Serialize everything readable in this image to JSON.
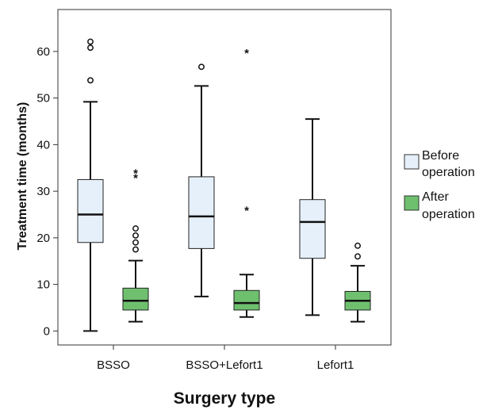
{
  "chart_data": {
    "type": "boxplot",
    "xlabel": "Surgery type",
    "ylabel": "Treatment time (months)",
    "ylim": [
      -3,
      69
    ],
    "yticks": [
      0,
      10,
      20,
      30,
      40,
      50,
      60
    ],
    "grid": false,
    "legend_position": "right",
    "categories": [
      "BSSO",
      "BSSO+Lefort1",
      "Lefort1"
    ],
    "series": [
      {
        "name": "Before operation",
        "color": "#e6f0fa",
        "boxes": [
          {
            "category": "BSSO",
            "min": 0,
            "q1": 19,
            "median": 25,
            "q3": 32.5,
            "max": 49.2,
            "outliers": [
              53.8,
              60.8,
              62.1
            ],
            "extremes": []
          },
          {
            "category": "BSSO+Lefort1",
            "min": 7.4,
            "q1": 17.7,
            "median": 24.6,
            "q3": 33.1,
            "max": 52.6,
            "outliers": [
              56.7
            ],
            "extremes": []
          },
          {
            "category": "Lefort1",
            "min": 3.4,
            "q1": 15.6,
            "median": 23.4,
            "q3": 28.2,
            "max": 45.5,
            "outliers": [],
            "extremes": []
          }
        ]
      },
      {
        "name": "After operation",
        "color": "#6ec06e",
        "boxes": [
          {
            "category": "BSSO",
            "min": 2,
            "q1": 4.5,
            "median": 6.5,
            "q3": 9.2,
            "max": 15.1,
            "outliers": [
              17.5,
              19,
              20.5,
              22
            ],
            "extremes": [
              33,
              34
            ]
          },
          {
            "category": "BSSO+Lefort1",
            "min": 3,
            "q1": 4.5,
            "median": 6,
            "q3": 8.7,
            "max": 12.1,
            "outliers": [],
            "extremes": [
              26,
              59.8
            ]
          },
          {
            "category": "Lefort1",
            "min": 2,
            "q1": 4.5,
            "median": 6.5,
            "q3": 8.5,
            "max": 14,
            "outliers": [
              16,
              18.3
            ],
            "extremes": []
          }
        ]
      }
    ]
  },
  "legend": {
    "before_line1": "Before",
    "before_line2": "operation",
    "after_line1": "After",
    "after_line2": "operation"
  }
}
